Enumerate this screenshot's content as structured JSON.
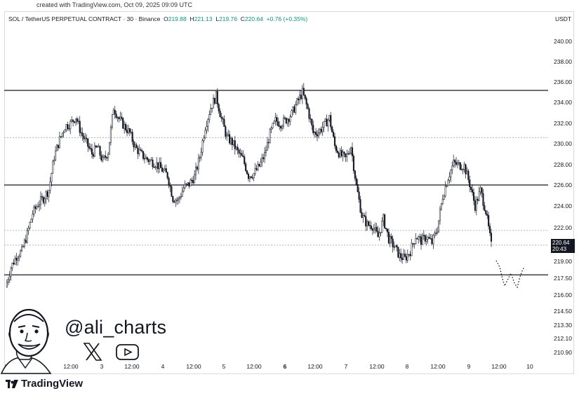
{
  "created_text": "created with TradingView.com, Oct 09, 2025 09:09 UTC",
  "header": {
    "symbol": "SOL / TetherUS PERPETUAL CONTRACT · 30 · Binance",
    "o_label": "O",
    "o": "219.88",
    "h_label": "H",
    "h": "221.13",
    "l_label": "L",
    "l": "219.76",
    "c_label": "C",
    "c": "220.64",
    "change": "+0.76 (+0.35%)"
  },
  "currency": "USDT",
  "price_tag": {
    "price": "220.64",
    "countdown": "20:43"
  },
  "watermark": {
    "handle": "@ali_charts",
    "icons": [
      "x-icon",
      "youtube-icon"
    ]
  },
  "brand": "TradingView",
  "colors": {
    "candle": "#131722",
    "level_line": "#131722",
    "dotted_line": "#b2b5be",
    "accent_green": "#089981"
  },
  "chart_data": {
    "type": "candlestick",
    "y_axis": {
      "position": "right",
      "ylim": [
        209.6,
        241.2
      ],
      "tick_labels": [
        "240.00",
        "238.00",
        "236.00",
        "234.00",
        "232.00",
        "230.00",
        "228.00",
        "226.00",
        "224.00",
        "222.00",
        "219.00",
        "217.50",
        "216.00",
        "214.50",
        "213.30",
        "212.10",
        "210.90"
      ]
    },
    "x_axis": {
      "tick_labels": [
        "2:00",
        "12:00",
        "3",
        "12:00",
        "4",
        "12:00",
        "5",
        "12:00",
        "6",
        "12:00",
        "7",
        "12:00",
        "8",
        "12:00",
        "9",
        "12:00",
        "10"
      ],
      "bold_labels": [
        "6"
      ]
    },
    "horizontal_levels": {
      "solid": [
        237.0,
        227.0,
        217.5
      ],
      "dotted": [
        232.0,
        222.2,
        220.64
      ]
    },
    "path_points": [
      [
        0,
        216.2
      ],
      [
        4,
        218.3
      ],
      [
        8,
        219.5
      ],
      [
        12,
        220.0
      ],
      [
        16,
        221.8
      ],
      [
        20,
        224.0
      ],
      [
        24,
        225.0
      ],
      [
        28,
        225.6
      ],
      [
        32,
        226.5
      ],
      [
        36,
        230.0
      ],
      [
        40,
        231.8
      ],
      [
        44,
        233.2
      ],
      [
        48,
        233.5
      ],
      [
        52,
        234.2
      ],
      [
        56,
        232.5
      ],
      [
        60,
        231.4
      ],
      [
        64,
        230.3
      ],
      [
        68,
        231.0
      ],
      [
        72,
        229.5
      ],
      [
        76,
        230.5
      ],
      [
        80,
        235.2
      ],
      [
        84,
        234.0
      ],
      [
        88,
        233.2
      ],
      [
        92,
        232.5
      ],
      [
        96,
        231.0
      ],
      [
        100,
        230.3
      ],
      [
        104,
        229.8
      ],
      [
        108,
        229.5
      ],
      [
        112,
        229.2
      ],
      [
        116,
        228.6
      ],
      [
        120,
        228.0
      ],
      [
        124,
        225.6
      ],
      [
        128,
        225.4
      ],
      [
        132,
        226.7
      ],
      [
        136,
        227.1
      ],
      [
        140,
        227.9
      ],
      [
        144,
        230.0
      ],
      [
        148,
        233.2
      ],
      [
        152,
        235.2
      ],
      [
        156,
        236.4
      ],
      [
        160,
        234.0
      ],
      [
        164,
        232.0
      ],
      [
        168,
        231.5
      ],
      [
        172,
        230.5
      ],
      [
        176,
        229.7
      ],
      [
        180,
        228.0
      ],
      [
        184,
        228.2
      ],
      [
        188,
        229.0
      ],
      [
        192,
        230.2
      ],
      [
        196,
        232.4
      ],
      [
        200,
        233.8
      ],
      [
        204,
        233.5
      ],
      [
        208,
        233.9
      ],
      [
        212,
        234.5
      ],
      [
        216,
        235.7
      ],
      [
        220,
        236.8
      ],
      [
        224,
        235.0
      ],
      [
        228,
        232.5
      ],
      [
        232,
        232.6
      ],
      [
        236,
        233.3
      ],
      [
        240,
        234.1
      ],
      [
        244,
        231.1
      ],
      [
        248,
        230.2
      ],
      [
        252,
        229.8
      ],
      [
        256,
        231.1
      ],
      [
        260,
        226.9
      ],
      [
        264,
        223.8
      ],
      [
        268,
        222.8
      ],
      [
        272,
        222.7
      ],
      [
        276,
        221.5
      ],
      [
        280,
        223.4
      ],
      [
        284,
        221.3
      ],
      [
        288,
        220.5
      ],
      [
        292,
        219.5
      ],
      [
        296,
        219.2
      ],
      [
        300,
        220.0
      ],
      [
        304,
        221.6
      ],
      [
        308,
        221.1
      ],
      [
        312,
        221.5
      ],
      [
        316,
        220.9
      ],
      [
        320,
        222.4
      ],
      [
        324,
        225.8
      ],
      [
        328,
        227.8
      ],
      [
        332,
        229.3
      ],
      [
        336,
        229.1
      ],
      [
        340,
        229.0
      ],
      [
        344,
        227.1
      ],
      [
        348,
        224.8
      ],
      [
        352,
        226.4
      ],
      [
        356,
        224.2
      ],
      [
        360,
        220.6
      ]
    ],
    "price_axis_timeframe": "30",
    "projected_path": "dotted zig-zag to the right of the last candle"
  }
}
